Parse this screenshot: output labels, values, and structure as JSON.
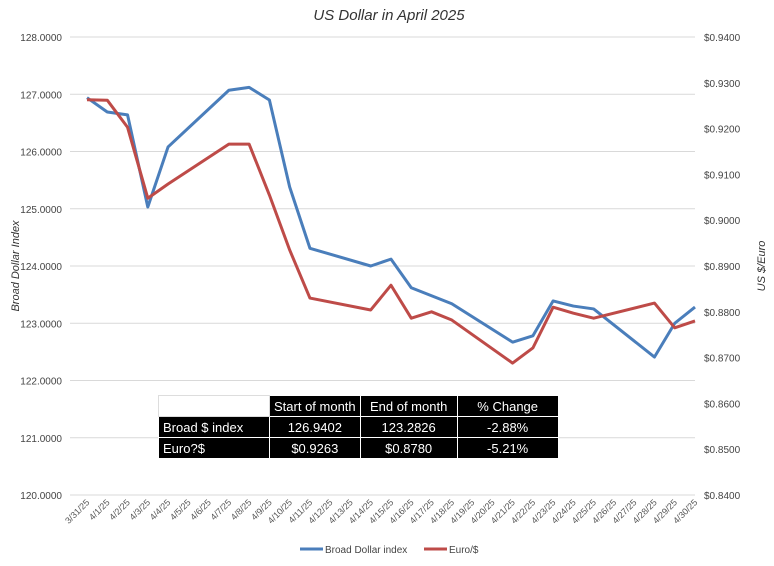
{
  "chart_data": {
    "type": "line",
    "title": "US Dollar in April 2025",
    "ylabel": "Broad Dollar Index",
    "y2label": "US $/Euro",
    "ylim": [
      120,
      128
    ],
    "y2lim": [
      0.84,
      0.94
    ],
    "yticks": [
      "120.0000",
      "121.0000",
      "122.0000",
      "123.0000",
      "124.0000",
      "125.0000",
      "126.0000",
      "127.0000",
      "128.0000"
    ],
    "y2ticks": [
      "$0.8400",
      "$0.8500",
      "$0.8600",
      "$0.8700",
      "$0.8800",
      "$0.8900",
      "$0.9000",
      "$0.9100",
      "$0.9200",
      "$0.9300",
      "$0.9400"
    ],
    "categories": [
      "3/31/25",
      "4/1/25",
      "4/2/25",
      "4/3/25",
      "4/4/25",
      "4/5/25",
      "4/6/25",
      "4/7/25",
      "4/8/25",
      "4/9/25",
      "4/10/25",
      "4/11/25",
      "4/12/25",
      "4/13/25",
      "4/14/25",
      "4/15/25",
      "4/16/25",
      "4/17/25",
      "4/18/25",
      "4/19/25",
      "4/20/25",
      "4/21/25",
      "4/22/25",
      "4/23/25",
      "4/24/25",
      "4/25/25",
      "4/26/25",
      "4/27/25",
      "4/28/25",
      "4/29/25",
      "4/30/25"
    ],
    "grid": true,
    "legend_position": "bottom",
    "series": [
      {
        "name": "Broad Dollar index",
        "axis": "left",
        "color": "#4a7ebb",
        "values": [
          126.9402,
          126.69,
          126.64,
          125.03,
          126.08,
          null,
          null,
          127.07,
          127.12,
          126.9,
          125.38,
          124.31,
          null,
          null,
          124.0,
          124.12,
          123.62,
          123.48,
          123.34,
          null,
          null,
          122.67,
          122.78,
          123.39,
          123.3,
          123.25,
          null,
          null,
          122.41,
          123.0,
          123.2826
        ]
      },
      {
        "name": "Euro/$",
        "axis": "right",
        "color": "#be4b48",
        "values": [
          0.9263,
          0.9262,
          0.9203,
          0.9048,
          0.9079,
          null,
          null,
          0.9166,
          0.9166,
          0.9055,
          0.8935,
          0.883,
          null,
          null,
          0.8804,
          0.8858,
          0.8786,
          0.88,
          0.8782,
          null,
          null,
          0.8688,
          0.8721,
          0.881,
          0.8797,
          0.8786,
          null,
          null,
          0.8819,
          0.8765,
          0.878
        ]
      }
    ]
  },
  "table": {
    "headers": [
      "Start of month",
      "End of month",
      "% Change"
    ],
    "rows": [
      {
        "label": "Broad $ index",
        "start": "126.9402",
        "end": "123.2826",
        "change": "-2.88%"
      },
      {
        "label": "Euro?$",
        "start": "$0.9263",
        "end": "$0.8780",
        "change": "-5.21%"
      }
    ]
  }
}
